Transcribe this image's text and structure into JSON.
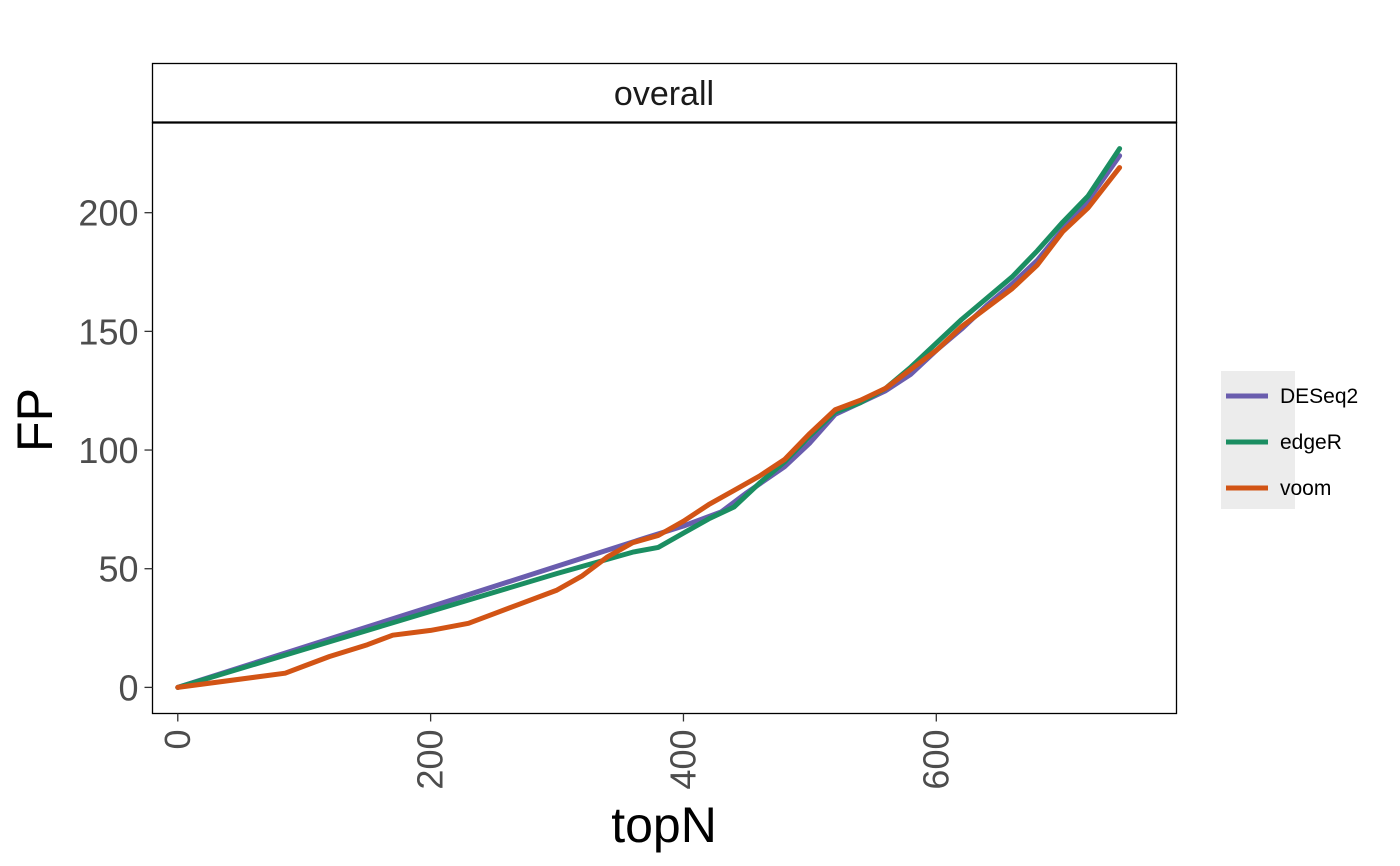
{
  "chart_data": {
    "type": "line",
    "facet_label": "overall",
    "xlabel": "topN",
    "ylabel": "FP",
    "xlim": [
      -20,
      790
    ],
    "ylim": [
      -11,
      238
    ],
    "x_ticks": [
      0,
      200,
      400,
      600
    ],
    "y_ticks": [
      0,
      50,
      100,
      150,
      200
    ],
    "grid": false,
    "legend_position": "right",
    "series": [
      {
        "name": "DESeq2",
        "color": "#6A5DAE",
        "x": [
          0,
          100,
          200,
          300,
          370,
          400,
          430,
          450,
          480,
          500,
          520,
          540,
          560,
          580,
          600,
          620,
          640,
          660,
          680,
          700,
          720,
          745
        ],
        "y": [
          0,
          17,
          34,
          51,
          63,
          68,
          74,
          82,
          93,
          103,
          115,
          120,
          125,
          132,
          142,
          151,
          161,
          170,
          180,
          193,
          205,
          224
        ]
      },
      {
        "name": "edgeR",
        "color": "#1B8E62",
        "x": [
          0,
          100,
          200,
          300,
          360,
          380,
          400,
          420,
          440,
          460,
          480,
          500,
          520,
          540,
          560,
          580,
          600,
          620,
          640,
          660,
          680,
          700,
          720,
          745
        ],
        "y": [
          0,
          16,
          32,
          48,
          57,
          59,
          65,
          71,
          76,
          86,
          95,
          106,
          116,
          120,
          126,
          135,
          145,
          155,
          164,
          173,
          184,
          196,
          207,
          227
        ]
      },
      {
        "name": "voom",
        "color": "#D25415",
        "x": [
          0,
          85,
          100,
          120,
          150,
          170,
          200,
          230,
          250,
          270,
          300,
          320,
          340,
          360,
          380,
          400,
          420,
          440,
          460,
          480,
          500,
          520,
          540,
          560,
          580,
          600,
          620,
          640,
          660,
          680,
          700,
          720,
          745
        ],
        "y": [
          0,
          6,
          9,
          13,
          18,
          22,
          24,
          27,
          31,
          35,
          41,
          47,
          55,
          61,
          64,
          70,
          77,
          83,
          89,
          96,
          107,
          117,
          121,
          126,
          134,
          142,
          152,
          160,
          168,
          178,
          192,
          202,
          219
        ]
      }
    ]
  }
}
